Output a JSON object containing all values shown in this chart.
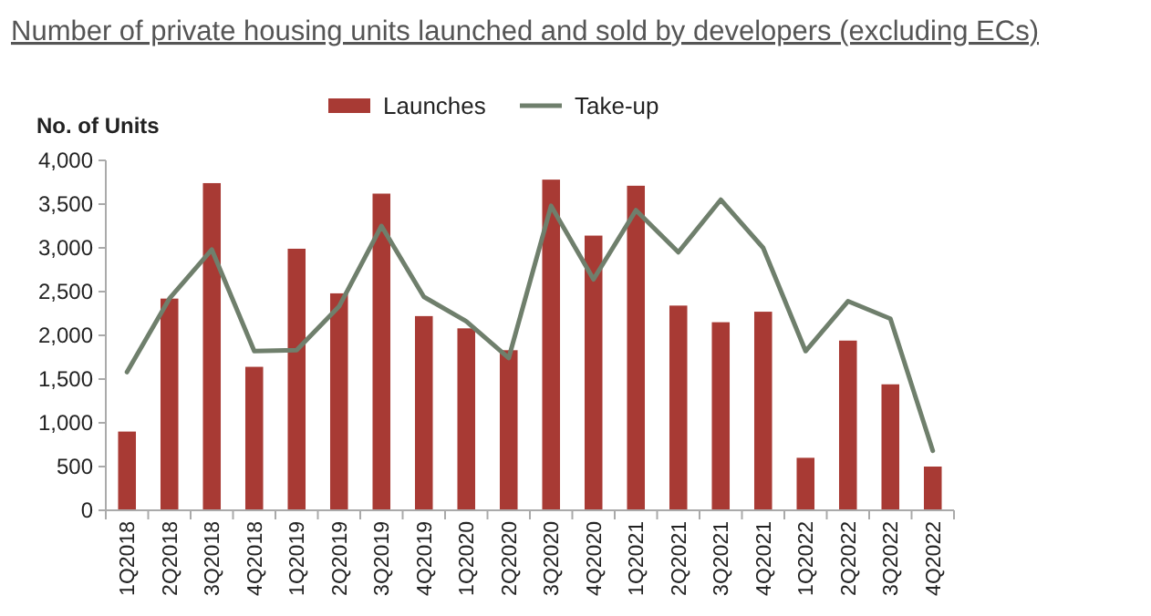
{
  "chart_data": {
    "type": "bar",
    "title": "Number of private housing units launched and sold by developers (excluding ECs)",
    "ylabel": "No. of Units",
    "categories": [
      "1Q2018",
      "2Q2018",
      "3Q2018",
      "4Q2018",
      "1Q2019",
      "2Q2019",
      "3Q2019",
      "4Q2019",
      "1Q2020",
      "2Q2020",
      "3Q2020",
      "4Q2020",
      "1Q2021",
      "2Q2021",
      "3Q2021",
      "4Q2021",
      "1Q2022",
      "2Q2022",
      "3Q2022",
      "4Q2022"
    ],
    "series": [
      {
        "name": "Launches",
        "color": "#a83a34",
        "values": [
          900,
          2420,
          3740,
          1640,
          2990,
          2480,
          3620,
          2220,
          2080,
          1830,
          3780,
          3140,
          3710,
          2340,
          2150,
          2270,
          600,
          1940,
          1440,
          500
        ]
      },
      {
        "name": "Take-up",
        "type": "line",
        "color": "#6f7f6c",
        "values": [
          1580,
          2420,
          2980,
          1820,
          1830,
          2330,
          3250,
          2440,
          2160,
          1740,
          3480,
          2640,
          3430,
          2950,
          3550,
          3000,
          1820,
          2390,
          2190,
          680
        ]
      }
    ],
    "ylim": [
      0,
      4000
    ],
    "yticks": [
      {
        "value": 0,
        "label": "0"
      },
      {
        "value": 500,
        "label": "500"
      },
      {
        "value": 1000,
        "label": "1,000"
      },
      {
        "value": 1500,
        "label": "1,500"
      },
      {
        "value": 2000,
        "label": "2,000"
      },
      {
        "value": 2500,
        "label": "2,500"
      },
      {
        "value": 3000,
        "label": "3,000"
      },
      {
        "value": 3500,
        "label": "3,500"
      },
      {
        "value": 4000,
        "label": "4,000"
      }
    ],
    "legend": "top",
    "grid": false,
    "marker": "none",
    "line_style": "solid"
  }
}
